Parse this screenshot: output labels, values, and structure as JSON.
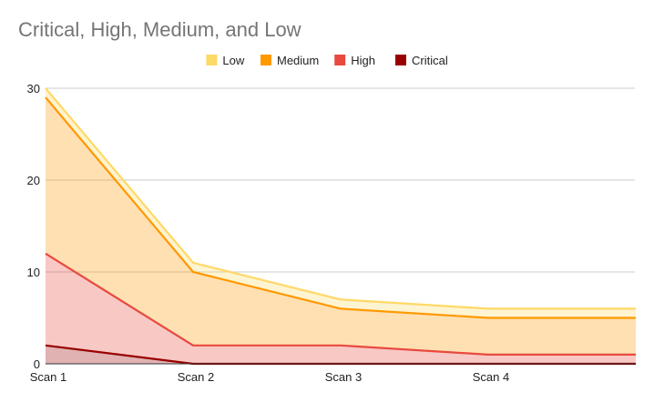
{
  "chart_data": {
    "type": "area",
    "stacked": true,
    "title": "Critical, High, Medium, and Low",
    "xlabel": "",
    "ylabel": "",
    "categories": [
      "Scan 1",
      "Scan 2",
      "Scan 3",
      "Scan 4",
      ""
    ],
    "ylim": [
      0,
      30
    ],
    "yticks": [
      0,
      10,
      20,
      30
    ],
    "grid": true,
    "legend_position": "top",
    "legend_order": [
      "Low",
      "Medium",
      "High",
      "Critical"
    ],
    "series": [
      {
        "name": "Critical",
        "values": [
          2,
          0,
          0,
          0,
          0
        ],
        "color": "#990000"
      },
      {
        "name": "High",
        "values": [
          10,
          2,
          2,
          1,
          1
        ],
        "color": "#e84a3f"
      },
      {
        "name": "Medium",
        "values": [
          17,
          8,
          4,
          4,
          4
        ],
        "color": "#ff9900"
      },
      {
        "name": "Low",
        "values": [
          1,
          1,
          1,
          1,
          1
        ],
        "color": "#ffd966"
      }
    ]
  }
}
